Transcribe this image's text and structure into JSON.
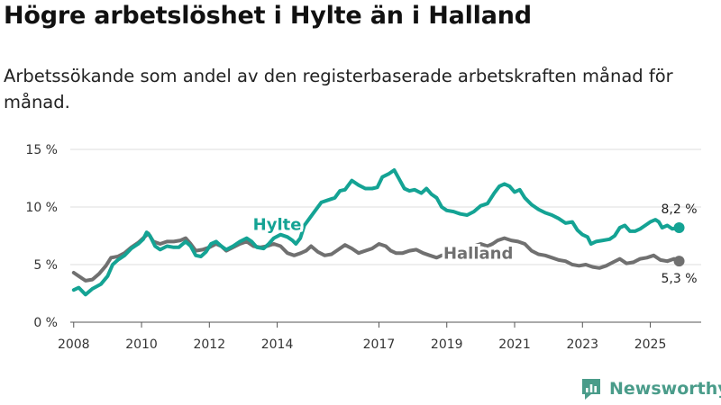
{
  "title": "Högre arbetslöshet i Hylte än i Halland",
  "subtitle": "Arbetssökande som andel av den registerbaserade arbetskraften månad för månad.",
  "brand": {
    "name": "Newsworthy",
    "icon": "newsworthy-logo-icon",
    "color": "#4a9c8a"
  },
  "chart_data": {
    "type": "line",
    "title": "Högre arbetslöshet i Hylte än i Halland",
    "xlabel": "",
    "ylabel": "",
    "xlim": [
      2007.9,
      2026.5
    ],
    "ylim": [
      0,
      15
    ],
    "grid": true,
    "x_ticks": [
      {
        "value": 2008,
        "label": "2008"
      },
      {
        "value": 2010,
        "label": "2010"
      },
      {
        "value": 2012,
        "label": "2012"
      },
      {
        "value": 2014,
        "label": "2014"
      },
      {
        "value": 2017,
        "label": "2017"
      },
      {
        "value": 2019,
        "label": "2019"
      },
      {
        "value": 2021,
        "label": "2021"
      },
      {
        "value": 2023,
        "label": "2023"
      },
      {
        "value": 2025,
        "label": "2025"
      }
    ],
    "y_ticks": [
      {
        "value": 0,
        "label": "0 %"
      },
      {
        "value": 5,
        "label": "5 %"
      },
      {
        "value": 10,
        "label": "10 %"
      },
      {
        "value": 15,
        "label": "15 %"
      }
    ],
    "series": [
      {
        "name": "Hylte",
        "color": "#14a394",
        "end_label": "8,2 %",
        "points": [
          [
            2008.0,
            2.8
          ],
          [
            2008.15,
            3.0
          ],
          [
            2008.35,
            2.4
          ],
          [
            2008.55,
            2.9
          ],
          [
            2008.8,
            3.3
          ],
          [
            2009.0,
            4.0
          ],
          [
            2009.15,
            5.0
          ],
          [
            2009.3,
            5.4
          ],
          [
            2009.5,
            5.8
          ],
          [
            2009.7,
            6.4
          ],
          [
            2009.9,
            6.8
          ],
          [
            2010.05,
            7.2
          ],
          [
            2010.15,
            7.8
          ],
          [
            2010.25,
            7.5
          ],
          [
            2010.4,
            6.6
          ],
          [
            2010.55,
            6.3
          ],
          [
            2010.75,
            6.6
          ],
          [
            2010.95,
            6.5
          ],
          [
            2011.1,
            6.5
          ],
          [
            2011.3,
            7.0
          ],
          [
            2011.45,
            6.6
          ],
          [
            2011.6,
            5.8
          ],
          [
            2011.75,
            5.7
          ],
          [
            2011.9,
            6.1
          ],
          [
            2012.05,
            6.8
          ],
          [
            2012.2,
            7.0
          ],
          [
            2012.35,
            6.6
          ],
          [
            2012.5,
            6.3
          ],
          [
            2012.7,
            6.6
          ],
          [
            2012.9,
            7.0
          ],
          [
            2013.1,
            7.3
          ],
          [
            2013.25,
            7.0
          ],
          [
            2013.4,
            6.5
          ],
          [
            2013.6,
            6.4
          ],
          [
            2013.75,
            6.8
          ],
          [
            2013.9,
            7.3
          ],
          [
            2014.1,
            7.6
          ],
          [
            2014.3,
            7.4
          ],
          [
            2014.45,
            7.1
          ],
          [
            2014.55,
            6.8
          ],
          [
            2014.68,
            7.3
          ],
          [
            2014.8,
            8.4
          ],
          [
            2014.9,
            8.8
          ],
          [
            2015.1,
            9.6
          ],
          [
            2015.3,
            10.4
          ],
          [
            2015.5,
            10.6
          ],
          [
            2015.7,
            10.8
          ],
          [
            2015.85,
            11.4
          ],
          [
            2016.0,
            11.5
          ],
          [
            2016.2,
            12.3
          ],
          [
            2016.4,
            11.9
          ],
          [
            2016.6,
            11.6
          ],
          [
            2016.8,
            11.6
          ],
          [
            2016.95,
            11.7
          ],
          [
            2017.1,
            12.6
          ],
          [
            2017.3,
            12.9
          ],
          [
            2017.45,
            13.2
          ],
          [
            2017.6,
            12.4
          ],
          [
            2017.75,
            11.6
          ],
          [
            2017.9,
            11.4
          ],
          [
            2018.05,
            11.5
          ],
          [
            2018.25,
            11.2
          ],
          [
            2018.4,
            11.6
          ],
          [
            2018.55,
            11.1
          ],
          [
            2018.7,
            10.8
          ],
          [
            2018.85,
            10.0
          ],
          [
            2019.0,
            9.7
          ],
          [
            2019.2,
            9.6
          ],
          [
            2019.4,
            9.4
          ],
          [
            2019.6,
            9.3
          ],
          [
            2019.8,
            9.6
          ],
          [
            2020.0,
            10.1
          ],
          [
            2020.2,
            10.3
          ],
          [
            2020.4,
            11.2
          ],
          [
            2020.55,
            11.8
          ],
          [
            2020.7,
            12.0
          ],
          [
            2020.85,
            11.8
          ],
          [
            2021.0,
            11.3
          ],
          [
            2021.15,
            11.5
          ],
          [
            2021.3,
            10.8
          ],
          [
            2021.5,
            10.2
          ],
          [
            2021.7,
            9.8
          ],
          [
            2021.9,
            9.5
          ],
          [
            2022.1,
            9.3
          ],
          [
            2022.3,
            9.0
          ],
          [
            2022.5,
            8.6
          ],
          [
            2022.7,
            8.7
          ],
          [
            2022.85,
            8.0
          ],
          [
            2023.0,
            7.6
          ],
          [
            2023.15,
            7.4
          ],
          [
            2023.25,
            6.8
          ],
          [
            2023.4,
            7.0
          ],
          [
            2023.6,
            7.1
          ],
          [
            2023.8,
            7.2
          ],
          [
            2023.95,
            7.5
          ],
          [
            2024.1,
            8.2
          ],
          [
            2024.25,
            8.4
          ],
          [
            2024.4,
            7.9
          ],
          [
            2024.55,
            7.9
          ],
          [
            2024.7,
            8.1
          ],
          [
            2024.85,
            8.4
          ],
          [
            2025.0,
            8.7
          ],
          [
            2025.15,
            8.9
          ],
          [
            2025.25,
            8.7
          ],
          [
            2025.35,
            8.2
          ],
          [
            2025.5,
            8.4
          ],
          [
            2025.65,
            8.1
          ],
          [
            2025.85,
            8.2
          ]
        ]
      },
      {
        "name": "Halland",
        "color": "#707070",
        "end_label": "5,3 %",
        "points": [
          [
            2008.0,
            4.3
          ],
          [
            2008.15,
            4.0
          ],
          [
            2008.35,
            3.6
          ],
          [
            2008.55,
            3.7
          ],
          [
            2008.75,
            4.2
          ],
          [
            2008.95,
            4.9
          ],
          [
            2009.1,
            5.6
          ],
          [
            2009.3,
            5.7
          ],
          [
            2009.5,
            6.0
          ],
          [
            2009.7,
            6.5
          ],
          [
            2009.9,
            6.9
          ],
          [
            2010.05,
            7.3
          ],
          [
            2010.2,
            7.7
          ],
          [
            2010.35,
            7.0
          ],
          [
            2010.55,
            6.8
          ],
          [
            2010.75,
            7.0
          ],
          [
            2010.95,
            7.0
          ],
          [
            2011.15,
            7.1
          ],
          [
            2011.3,
            7.3
          ],
          [
            2011.45,
            6.8
          ],
          [
            2011.6,
            6.2
          ],
          [
            2011.8,
            6.3
          ],
          [
            2012.0,
            6.5
          ],
          [
            2012.2,
            6.8
          ],
          [
            2012.35,
            6.6
          ],
          [
            2012.5,
            6.2
          ],
          [
            2012.7,
            6.5
          ],
          [
            2012.9,
            6.8
          ],
          [
            2013.1,
            7.0
          ],
          [
            2013.3,
            6.6
          ],
          [
            2013.5,
            6.5
          ],
          [
            2013.7,
            6.6
          ],
          [
            2013.9,
            6.8
          ],
          [
            2014.1,
            6.6
          ],
          [
            2014.3,
            6.0
          ],
          [
            2014.5,
            5.8
          ],
          [
            2014.7,
            6.0
          ],
          [
            2014.85,
            6.2
          ],
          [
            2015.0,
            6.6
          ],
          [
            2015.2,
            6.1
          ],
          [
            2015.4,
            5.8
          ],
          [
            2015.6,
            5.9
          ],
          [
            2015.8,
            6.3
          ],
          [
            2016.0,
            6.7
          ],
          [
            2016.2,
            6.4
          ],
          [
            2016.4,
            6.0
          ],
          [
            2016.6,
            6.2
          ],
          [
            2016.8,
            6.4
          ],
          [
            2017.0,
            6.8
          ],
          [
            2017.2,
            6.6
          ],
          [
            2017.35,
            6.2
          ],
          [
            2017.5,
            6.0
          ],
          [
            2017.7,
            6.0
          ],
          [
            2017.9,
            6.2
          ],
          [
            2018.1,
            6.3
          ],
          [
            2018.3,
            6.0
          ],
          [
            2018.5,
            5.8
          ],
          [
            2018.7,
            5.6
          ],
          [
            2018.85,
            5.8
          ],
          [
            2019.0,
            5.9
          ],
          [
            2019.2,
            6.0
          ],
          [
            2019.4,
            6.1
          ],
          [
            2019.6,
            6.3
          ],
          [
            2019.8,
            6.6
          ],
          [
            2020.0,
            6.8
          ],
          [
            2020.2,
            6.6
          ],
          [
            2020.35,
            6.8
          ],
          [
            2020.5,
            7.1
          ],
          [
            2020.7,
            7.3
          ],
          [
            2020.9,
            7.1
          ],
          [
            2021.1,
            7.0
          ],
          [
            2021.3,
            6.8
          ],
          [
            2021.5,
            6.2
          ],
          [
            2021.7,
            5.9
          ],
          [
            2021.9,
            5.8
          ],
          [
            2022.1,
            5.6
          ],
          [
            2022.3,
            5.4
          ],
          [
            2022.5,
            5.3
          ],
          [
            2022.7,
            5.0
          ],
          [
            2022.9,
            4.9
          ],
          [
            2023.1,
            5.0
          ],
          [
            2023.3,
            4.8
          ],
          [
            2023.5,
            4.7
          ],
          [
            2023.7,
            4.9
          ],
          [
            2023.9,
            5.2
          ],
          [
            2024.1,
            5.5
          ],
          [
            2024.3,
            5.1
          ],
          [
            2024.5,
            5.2
          ],
          [
            2024.7,
            5.5
          ],
          [
            2024.9,
            5.6
          ],
          [
            2025.1,
            5.8
          ],
          [
            2025.3,
            5.4
          ],
          [
            2025.5,
            5.3
          ],
          [
            2025.7,
            5.5
          ],
          [
            2025.85,
            5.3
          ]
        ]
      }
    ]
  }
}
